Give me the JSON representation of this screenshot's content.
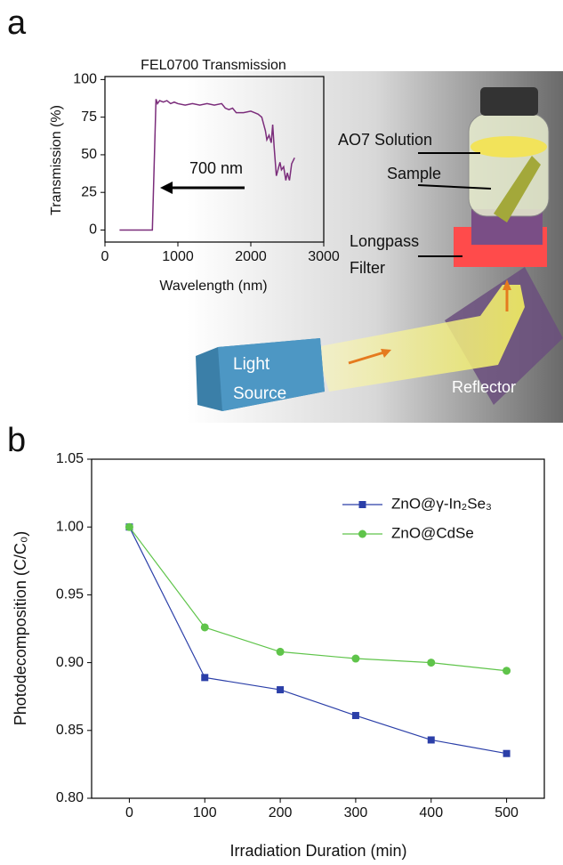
{
  "panel_labels": [
    "a",
    "b"
  ],
  "diagram": {
    "labels": [
      "AO7 Solution",
      "Sample",
      "Longpass",
      "Filter",
      "Light",
      "Source",
      "Reflector"
    ]
  },
  "chart_data": [
    {
      "type": "line",
      "title": "FEL0700 Transmission",
      "x_label": "Wavelength (nm)",
      "y_label": "Transmission (%)",
      "annotation": "700 nm",
      "color": "#7b2d7b",
      "x": [
        200,
        650,
        700,
        720,
        750,
        800,
        850,
        900,
        950,
        1000,
        1100,
        1200,
        1300,
        1400,
        1500,
        1600,
        1650,
        1700,
        1750,
        1800,
        1900,
        2000,
        2050,
        2100,
        2150,
        2200,
        2220,
        2250,
        2280,
        2300,
        2320,
        2350,
        2400,
        2420,
        2450,
        2480,
        2500,
        2530,
        2560,
        2600
      ],
      "values": [
        0,
        0,
        87,
        84,
        86,
        85,
        86,
        84,
        85,
        84,
        83,
        84,
        83,
        84,
        83,
        84,
        81,
        80,
        81,
        78,
        78,
        79,
        78,
        77,
        75,
        66,
        60,
        63,
        58,
        70,
        55,
        36,
        45,
        40,
        42,
        33,
        38,
        33,
        44,
        48
      ],
      "xlim": [
        0,
        3000
      ],
      "xticks": [
        0,
        1000,
        2000,
        3000
      ],
      "ylim": [
        -8,
        102
      ],
      "yticks": [
        0,
        25,
        50,
        75,
        100
      ]
    },
    {
      "type": "line",
      "x_label": "Irradiation Duration (min)",
      "y_label": "Photodecomposition (C/C₀)",
      "x": [
        0,
        100,
        200,
        300,
        400,
        500
      ],
      "series": [
        {
          "name": "ZnO@γ-In₂Se₃",
          "color": "#2b3fa8",
          "marker": "square",
          "values": [
            1.0,
            0.889,
            0.88,
            0.861,
            0.843,
            0.833
          ]
        },
        {
          "name": "ZnO@CdSe",
          "color": "#5fc44a",
          "marker": "circle",
          "values": [
            1.0,
            0.926,
            0.908,
            0.903,
            0.9,
            0.894
          ]
        }
      ],
      "xlim": [
        -50,
        550
      ],
      "xticks": [
        0,
        100,
        200,
        300,
        400,
        500
      ],
      "ylim": [
        0.8,
        1.05
      ],
      "yticks": [
        {
          "value": 0.8,
          "label": "0.80"
        },
        0.85,
        {
          "value": 0.9,
          "label": "0.90"
        },
        0.95,
        {
          "value": 1.0,
          "label": "1.00"
        },
        1.05
      ]
    }
  ]
}
